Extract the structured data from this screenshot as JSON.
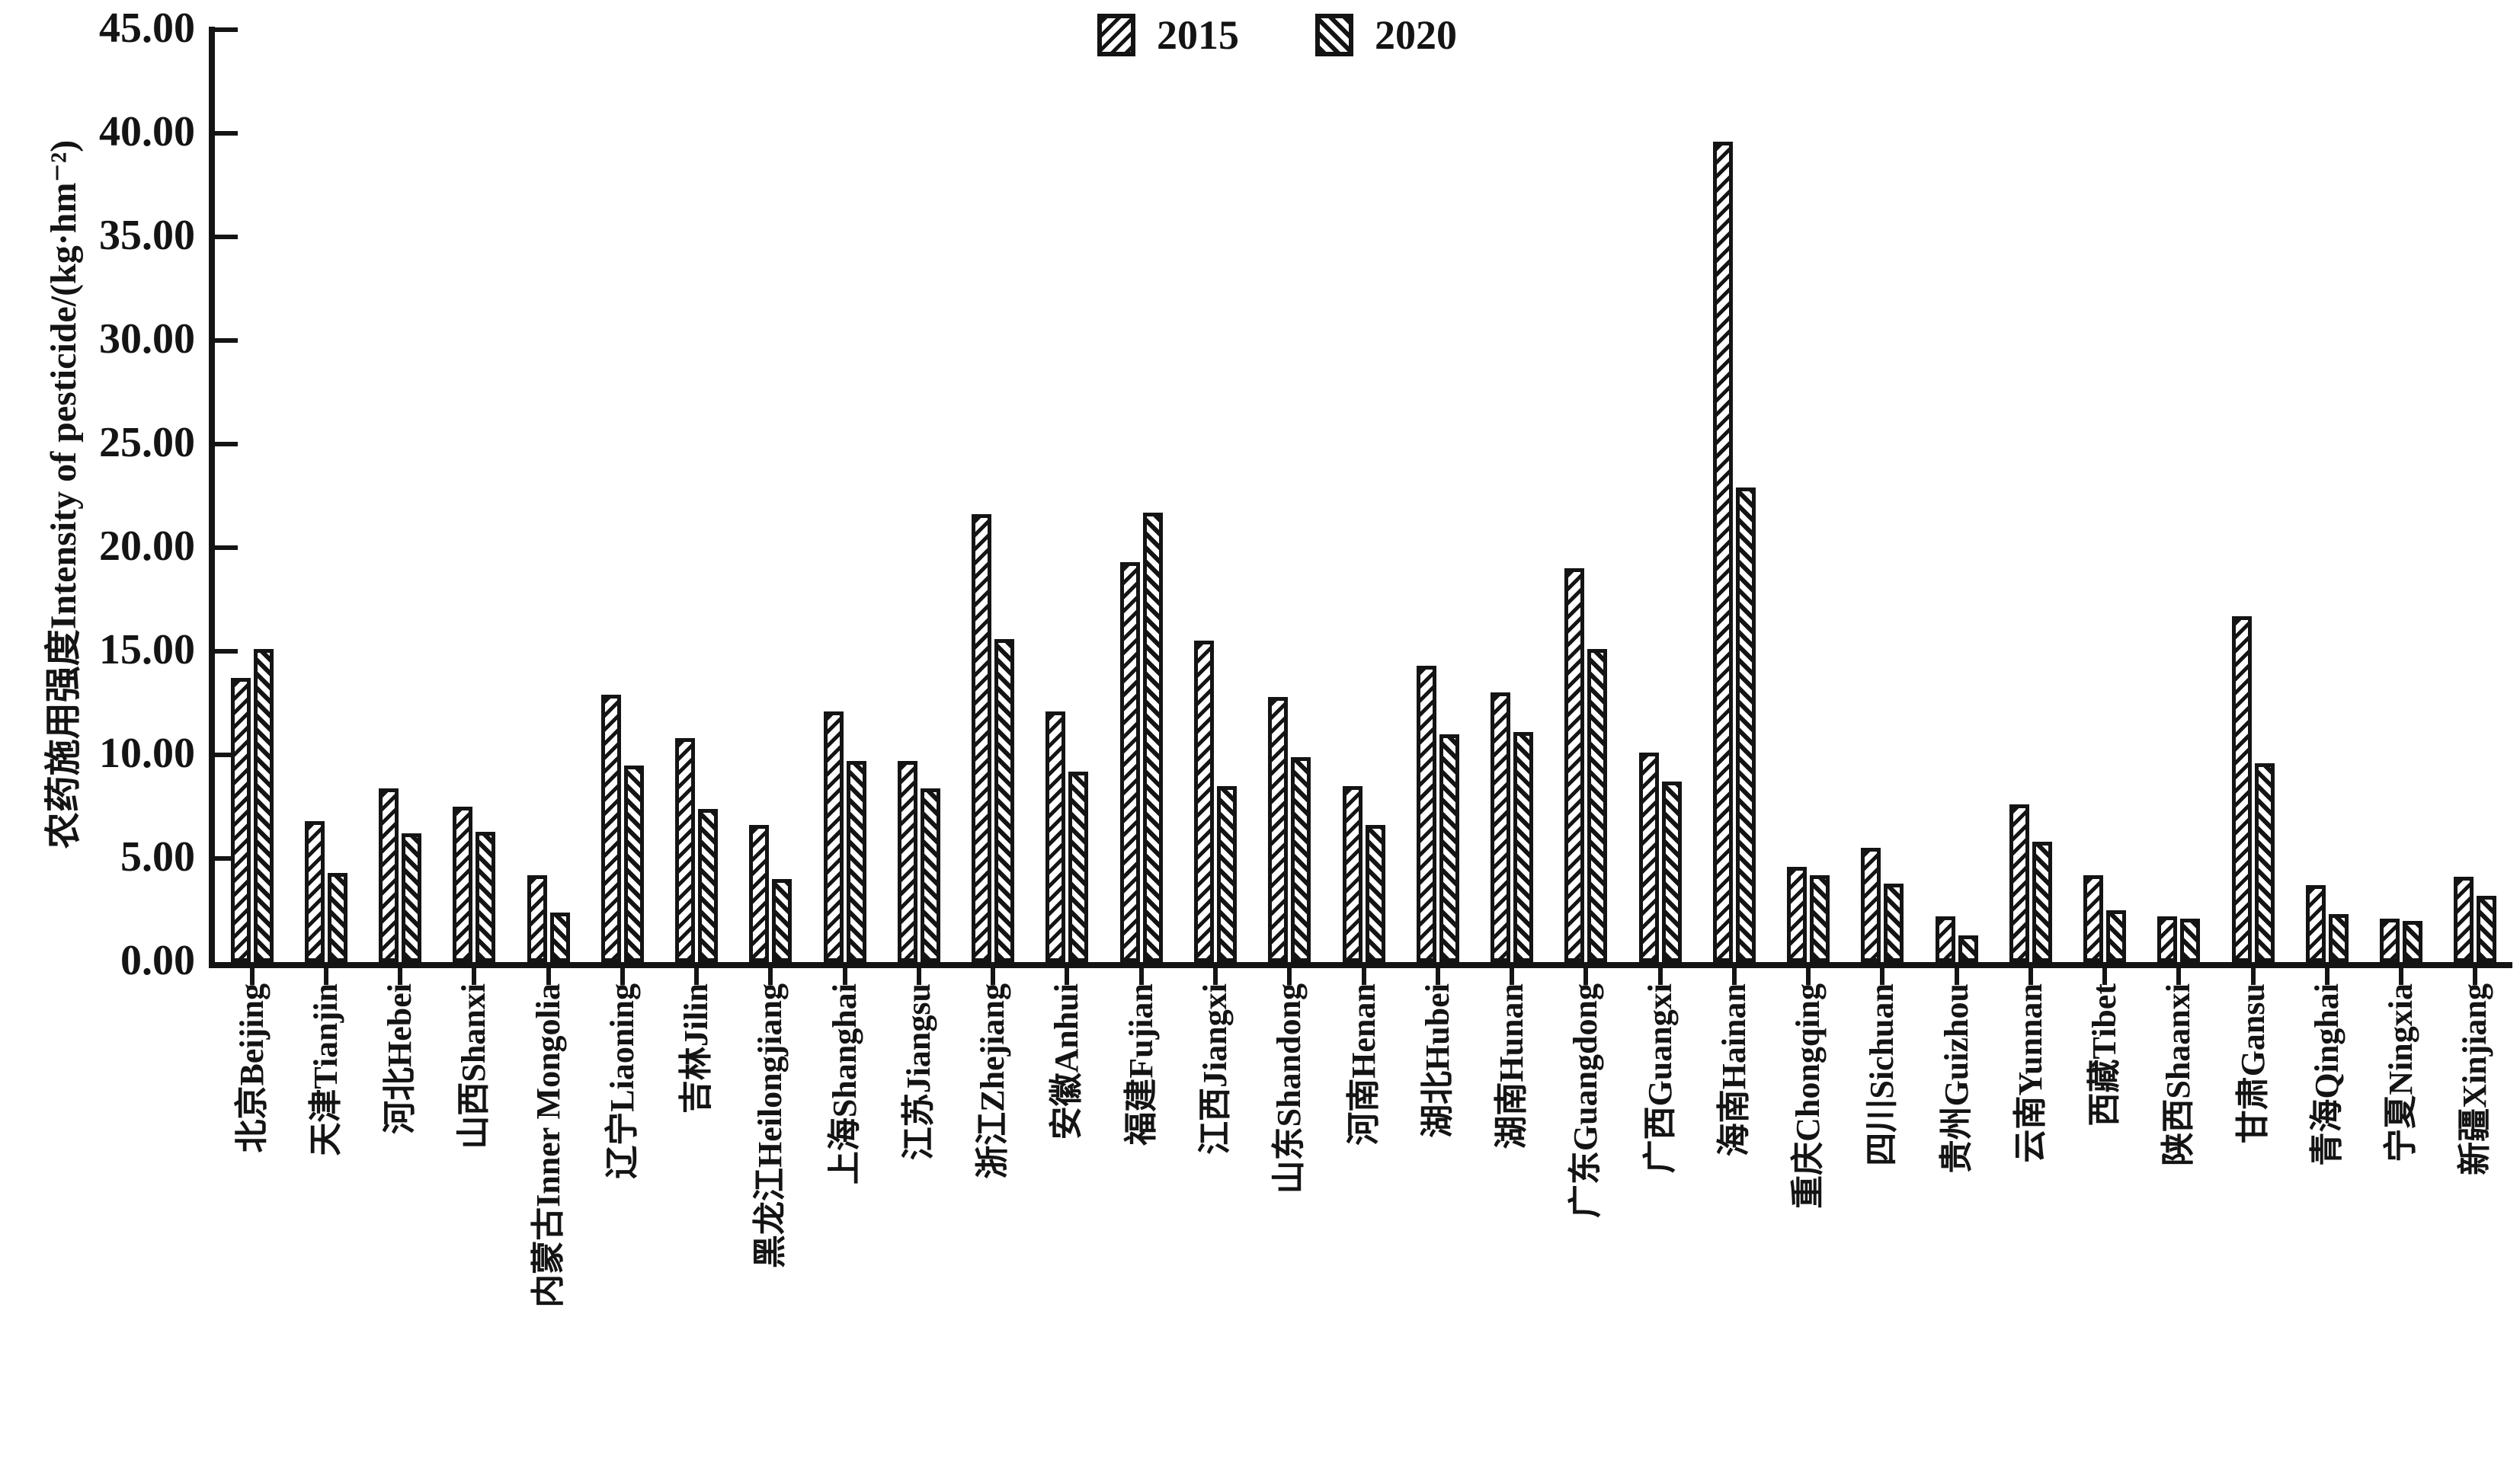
{
  "chart_data": {
    "type": "bar",
    "title": "",
    "xlabel": "",
    "ylabel": "农药施用强度Intensity of pesticide/(kg·hm⁻²)",
    "ylim": [
      0,
      45
    ],
    "ytick_step": 5,
    "ytick_decimals": 2,
    "grid": false,
    "legend_position": "top-center",
    "legend": [
      "2015",
      "2020"
    ],
    "categories": [
      "北京Beijing",
      "天津Tianjin",
      "河北Hebei",
      "山西Shanxi",
      "内蒙古Inner Mongolia",
      "辽宁Liaoning",
      "吉林Jilin",
      "黑龙江Heilongjiang",
      "上海Shanghai",
      "江苏Jiangsu",
      "浙江Zhejiang",
      "安徽Anhui",
      "福建Fujian",
      "江西Jiangxi",
      "山东Shandong",
      "河南Henan",
      "湖北Hubei",
      "湖南Hunan",
      "广东Guangdong",
      "广西Guangxi",
      "海南Hainan",
      "重庆Chongqing",
      "四川Sichuan",
      "贵州Guizhou",
      "云南Yunnan",
      "西藏Tibet",
      "陕西Shaanxi",
      "甘肃Gansu",
      "青海Qinghai",
      "宁夏Ningxia",
      "新疆Xinjiang"
    ],
    "series": [
      {
        "name": "2015",
        "hatch": "forward-diagonal",
        "values": [
          13.7,
          6.8,
          8.4,
          7.5,
          4.2,
          12.9,
          10.8,
          6.6,
          12.1,
          9.7,
          21.6,
          12.1,
          19.3,
          15.5,
          12.8,
          8.5,
          14.3,
          13.0,
          19.0,
          10.1,
          39.6,
          4.6,
          5.5,
          2.2,
          7.6,
          4.2,
          2.2,
          16.7,
          3.7,
          2.1,
          4.1
        ]
      },
      {
        "name": "2020",
        "hatch": "backward-diagonal",
        "values": [
          15.1,
          4.3,
          6.2,
          6.3,
          2.4,
          9.5,
          7.4,
          4.0,
          9.7,
          8.4,
          15.6,
          9.2,
          21.7,
          8.5,
          9.9,
          6.6,
          11.0,
          11.1,
          15.1,
          8.7,
          22.9,
          4.2,
          3.8,
          1.3,
          5.8,
          2.5,
          2.1,
          9.6,
          2.3,
          2.0,
          3.2
        ]
      }
    ],
    "colors": {
      "background": "#ffffff",
      "axis": "#141414",
      "bar_stroke": "#141414",
      "hatch_fill": "#141414",
      "text": "#141414"
    }
  }
}
